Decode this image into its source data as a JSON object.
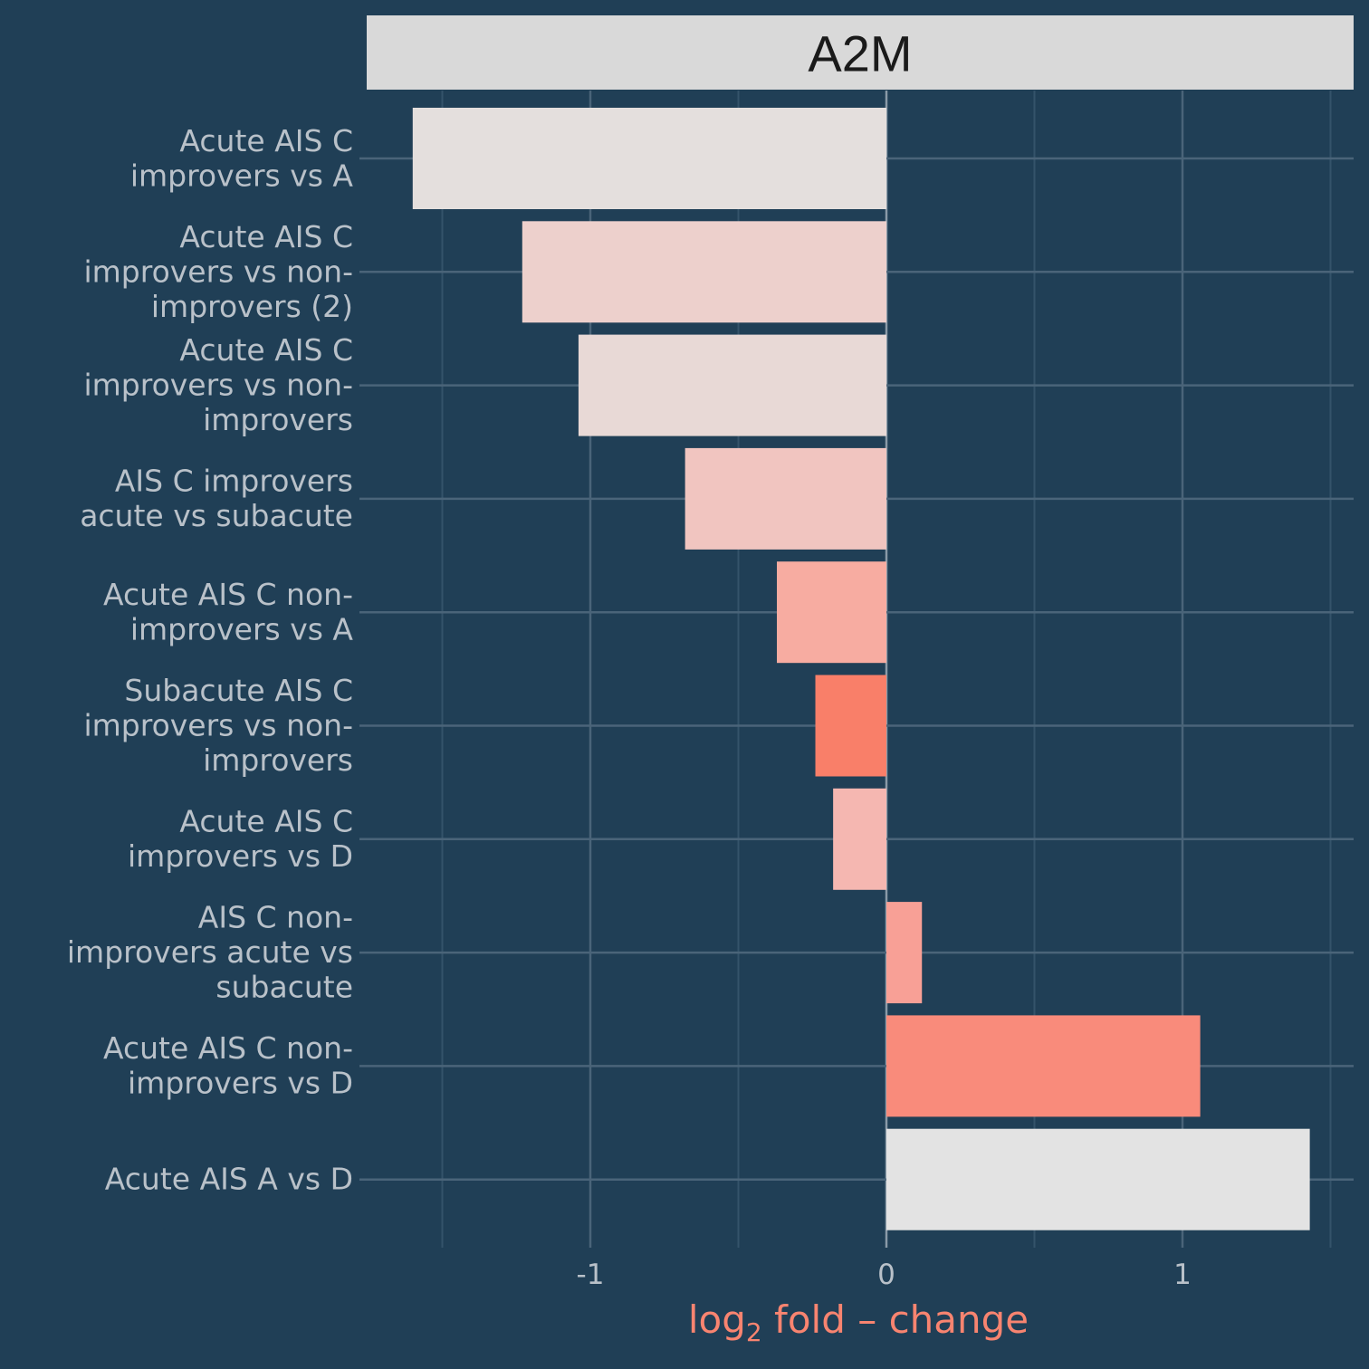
{
  "chart_data": {
    "type": "bar",
    "orientation": "horizontal",
    "panel_title": "A2M",
    "xlabel": {
      "main": "log",
      "subscript": "2",
      "rest": " fold – change"
    },
    "ylabel": "",
    "xlim": [
      -1.75,
      1.58
    ],
    "x_ticks": [
      -1,
      0,
      1
    ],
    "x_tick_labels": [
      "-1",
      "0",
      "1"
    ],
    "grid": true,
    "legend": "none",
    "categories": [
      {
        "lines": [
          "Acute AIS C",
          "improvers vs A"
        ],
        "value": -1.6,
        "color": "#e4dfdd"
      },
      {
        "lines": [
          "Acute AIS C",
          "improvers vs non-",
          "improvers (2)"
        ],
        "value": -1.23,
        "color": "#edd0cc"
      },
      {
        "lines": [
          "Acute AIS C",
          "improvers vs non-",
          "improvers"
        ],
        "value": -1.04,
        "color": "#e8d9d6"
      },
      {
        "lines": [
          "AIS C improvers",
          "acute vs subacute"
        ],
        "value": -0.68,
        "color": "#f1c5c0"
      },
      {
        "lines": [
          "Acute AIS C non-",
          "improvers vs A"
        ],
        "value": -0.37,
        "color": "#f7aca1"
      },
      {
        "lines": [
          "Subacute AIS C",
          "improvers vs non-",
          "improvers"
        ],
        "value": -0.24,
        "color": "#f97f69"
      },
      {
        "lines": [
          "Acute AIS C",
          "improvers vs D"
        ],
        "value": -0.18,
        "color": "#f5b7b1"
      },
      {
        "lines": [
          "AIS C non-",
          "improvers acute vs",
          "subacute"
        ],
        "value": 0.12,
        "color": "#f8a096"
      },
      {
        "lines": [
          "Acute AIS C non-",
          "improvers vs D"
        ],
        "value": 1.06,
        "color": "#f98b7b"
      },
      {
        "lines": [
          "Acute AIS A vs D"
        ],
        "value": 1.43,
        "color": "#e3e3e3"
      }
    ],
    "colors": {
      "background": "#203f56",
      "grid_major": "#4a6479",
      "grid_minor": "#34536a",
      "zero_line": "#8a9aa8",
      "strip_fill": "#d9d9d9",
      "strip_text": "#1a1a1a",
      "label_text": "#b9c1c9",
      "axis_title": "#f88470"
    }
  }
}
